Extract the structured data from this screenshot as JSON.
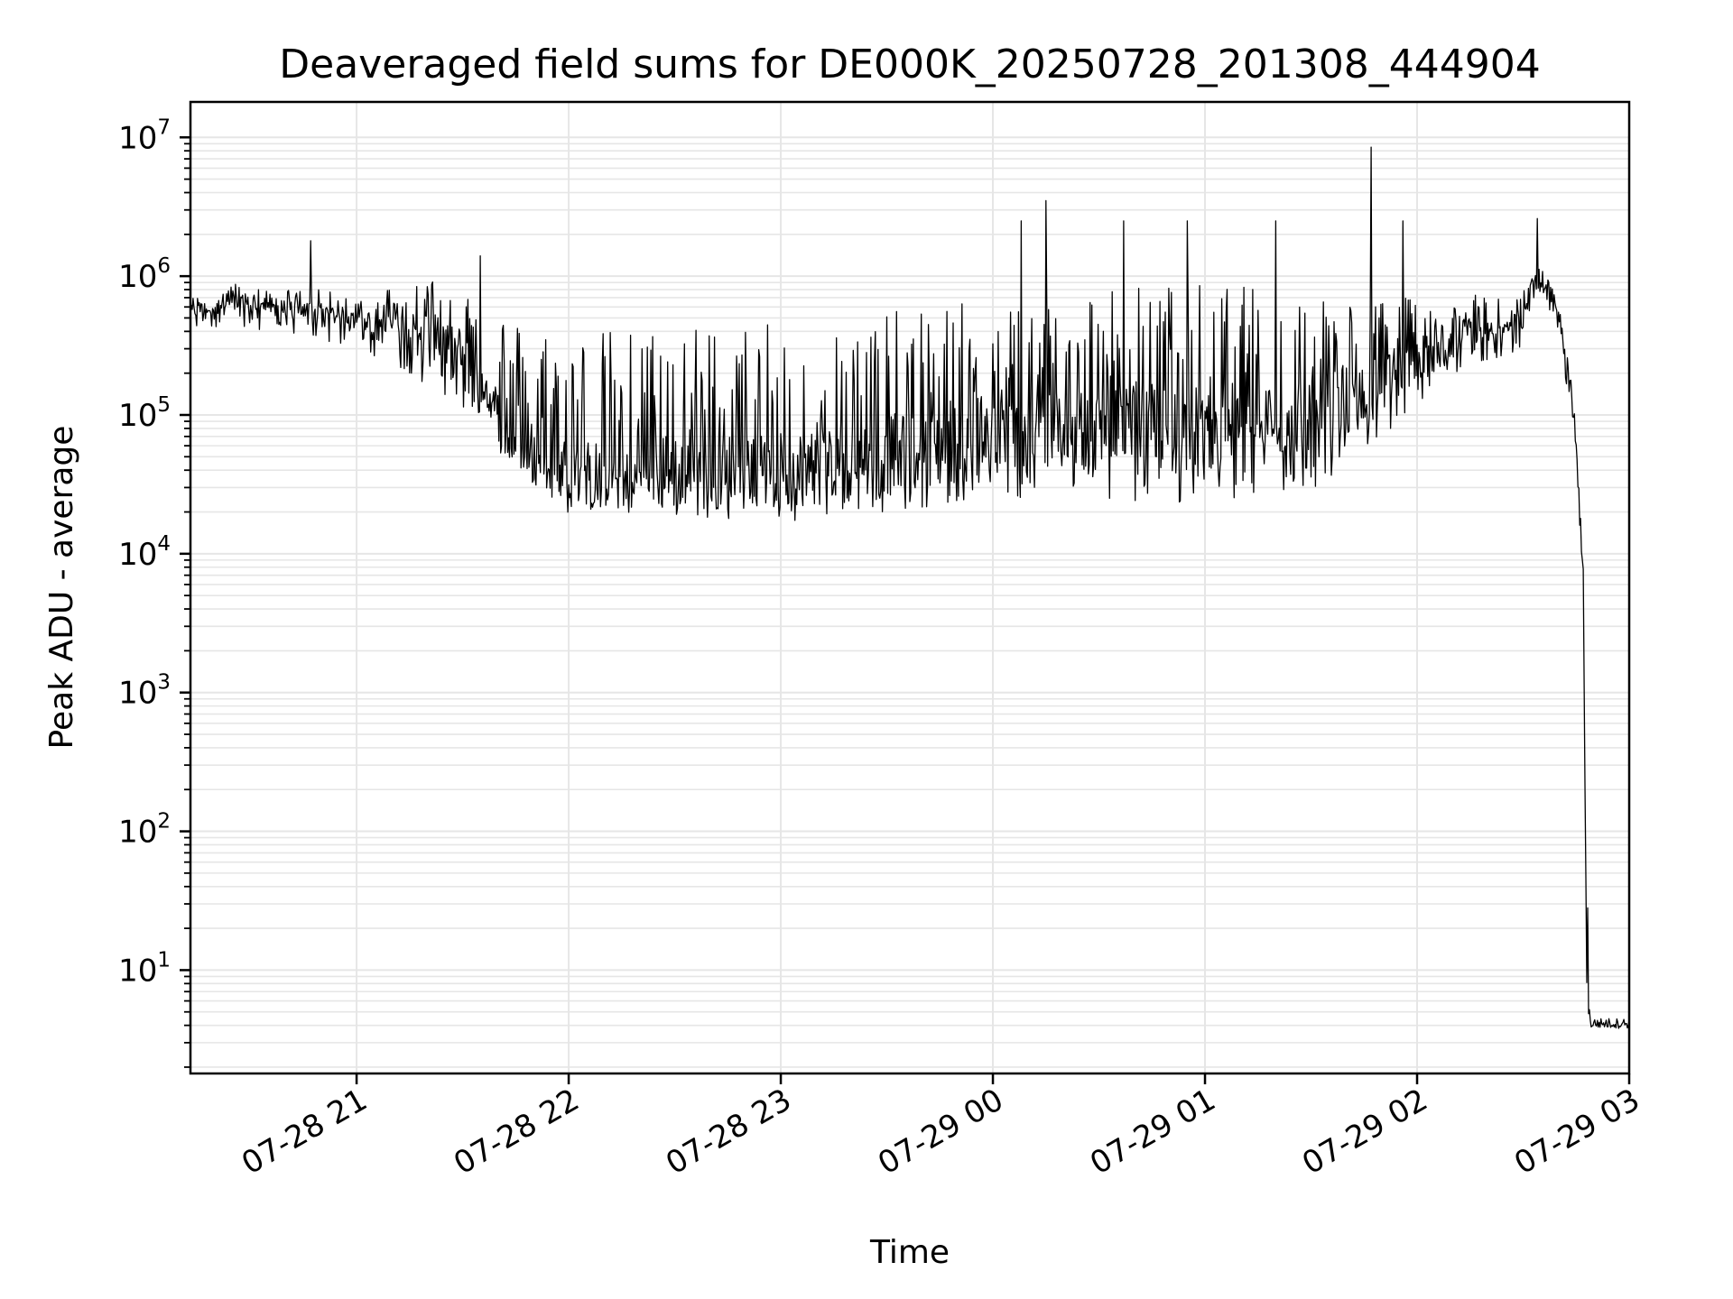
{
  "chart_data": {
    "type": "line",
    "title": "Deaveraged field sums for DE000K_20250728_201308_444904",
    "xlabel": "Time",
    "ylabel": "Peak ADU - average",
    "xscale": "time",
    "yscale": "log",
    "xlim": [
      "2025-07-28 20:13",
      "2025-07-29 03:00"
    ],
    "ylim": [
      1.8,
      18000000
    ],
    "grid": true,
    "line_color": "#000000",
    "grid_color": "#e6e6e6",
    "x_ticks": [
      {
        "value": "2025-07-28 21:00",
        "label": "07-28 21"
      },
      {
        "value": "2025-07-28 22:00",
        "label": "07-28 22"
      },
      {
        "value": "2025-07-28 23:00",
        "label": "07-28 23"
      },
      {
        "value": "2025-07-29 00:00",
        "label": "07-29 00"
      },
      {
        "value": "2025-07-29 01:00",
        "label": "07-29 01"
      },
      {
        "value": "2025-07-29 02:00",
        "label": "07-29 02"
      },
      {
        "value": "2025-07-29 03:00",
        "label": "07-29 03"
      }
    ],
    "y_ticks": [
      {
        "value": 10,
        "label_base": "10",
        "label_exp": "1"
      },
      {
        "value": 100,
        "label_base": "10",
        "label_exp": "2"
      },
      {
        "value": 1000,
        "label_base": "10",
        "label_exp": "3"
      },
      {
        "value": 10000,
        "label_base": "10",
        "label_exp": "4"
      },
      {
        "value": 100000,
        "label_base": "10",
        "label_exp": "5"
      },
      {
        "value": 1000000,
        "label_base": "10",
        "label_exp": "6"
      },
      {
        "value": 10000000,
        "label_base": "10",
        "label_exp": "7"
      }
    ],
    "series": [
      {
        "x": [
          "2025-07-28 20:13",
          "2025-07-28 20:25",
          "2025-07-28 20:35",
          "2025-07-28 20:50",
          "2025-07-28 21:00",
          "2025-07-28 21:15",
          "2025-07-28 21:30",
          "2025-07-28 21:45",
          "2025-07-28 22:00",
          "2025-07-28 22:30",
          "2025-07-28 23:00",
          "2025-07-28 23:30",
          "2025-07-29 00:00",
          "2025-07-29 00:30",
          "2025-07-29 01:00",
          "2025-07-29 01:30",
          "2025-07-29 01:50",
          "2025-07-29 02:10",
          "2025-07-29 02:30",
          "2025-07-29 02:35",
          "2025-07-29 02:40",
          "2025-07-29 02:43",
          "2025-07-29 02:45",
          "2025-07-29 02:47",
          "2025-07-29 02:48",
          "2025-07-29 02:49",
          "2025-07-29 02:50",
          "2025-07-29 02:55",
          "2025-07-29 03:00"
        ],
        "y": [
          550000,
          650000,
          600000,
          550000,
          480000,
          500000,
          250000,
          70000,
          35000,
          40000,
          40000,
          50000,
          70000,
          80000,
          80000,
          100000,
          180000,
          350000,
          500000,
          900000,
          500000,
          180000,
          60000,
          7000,
          10,
          4,
          4,
          4,
          4
        ],
        "upper": [
          700000,
          900000,
          800000,
          800000,
          700000,
          1000000,
          1000000,
          500000,
          400000,
          450000,
          450000,
          550000,
          700000,
          900000,
          900000,
          800000,
          700000,
          700000,
          800000,
          1200000,
          700000,
          250000,
          80000,
          8000,
          100,
          4.5,
          4.5,
          4.5,
          4.5
        ],
        "lower": [
          400000,
          450000,
          400000,
          350000,
          300000,
          200000,
          100000,
          40000,
          20000,
          18000,
          17000,
          20000,
          25000,
          25000,
          22000,
          25000,
          60000,
          200000,
          300000,
          800000,
          400000,
          120000,
          40000,
          6000,
          6,
          3.8,
          3.8,
          3.8,
          3.8
        ],
        "peaks": [
          {
            "x": "2025-07-28 20:47",
            "y": 1800000
          },
          {
            "x": "2025-07-28 21:35",
            "y": 1400000
          },
          {
            "x": "2025-07-29 00:15",
            "y": 3500000
          },
          {
            "x": "2025-07-29 00:08",
            "y": 2500000
          },
          {
            "x": "2025-07-29 00:37",
            "y": 2500000
          },
          {
            "x": "2025-07-29 00:55",
            "y": 2500000
          },
          {
            "x": "2025-07-29 01:20",
            "y": 2500000
          },
          {
            "x": "2025-07-29 01:47",
            "y": 8500000
          },
          {
            "x": "2025-07-29 01:56",
            "y": 2500000
          },
          {
            "x": "2025-07-29 02:34",
            "y": 2600000
          }
        ]
      }
    ]
  }
}
